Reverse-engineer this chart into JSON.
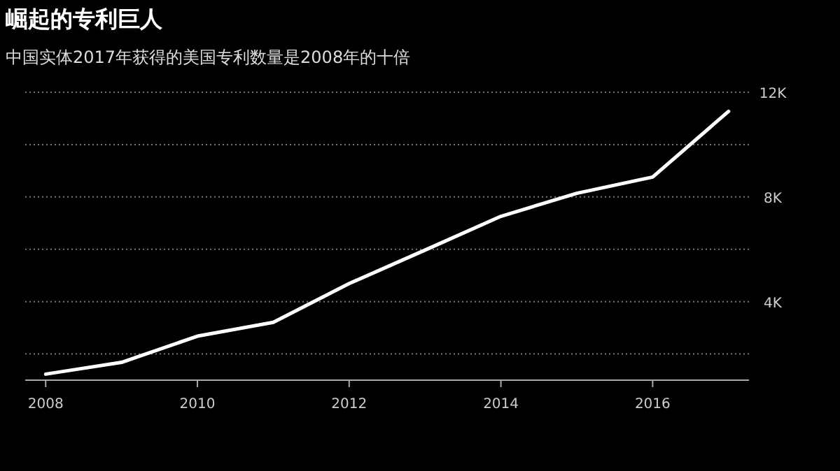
{
  "chart_data": {
    "type": "line",
    "title": "崛起的专利巨人",
    "subtitle": "中国实体2017年获得的美国专利数量是2008年的十倍",
    "x": [
      2008,
      2009,
      2010,
      2011,
      2012,
      2013,
      2014,
      2015,
      2016,
      2017
    ],
    "series": [
      {
        "color": "#ffffff",
        "values": [
          1230,
          1680,
          2680,
          3210,
          4690,
          5970,
          7260,
          8140,
          8760,
          11270
        ]
      }
    ],
    "xlim": [
      2007.73,
      2017.27
    ],
    "xticks": [
      2008,
      2010,
      2012,
      2014,
      2016
    ],
    "ylim": [
      1000,
      12000
    ],
    "yticks": [
      {
        "value": 2000,
        "label": null
      },
      {
        "value": 4000,
        "label": "4K"
      },
      {
        "value": 6000,
        "label": null
      },
      {
        "value": 8000,
        "label": "8K"
      },
      {
        "value": 10000,
        "label": null
      },
      {
        "value": 12000,
        "label": "12K"
      }
    ],
    "grid": "y",
    "marker": "none",
    "line_style": "solid"
  }
}
